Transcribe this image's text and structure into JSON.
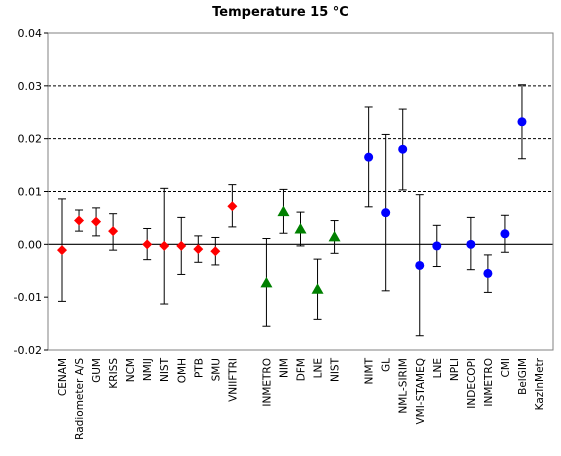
{
  "chart_data": {
    "type": "scatter",
    "title": "Temperature  15 °C",
    "xlabel": "",
    "ylabel": "",
    "ylim": [
      -0.02,
      0.04
    ],
    "y_ticks": [
      "-0.02",
      "-0.01",
      "0.00",
      "0.01",
      "0.02",
      "0.03",
      "0.04"
    ],
    "y_tick_values": [
      -0.02,
      -0.01,
      0.0,
      0.01,
      0.02,
      0.03,
      0.04
    ],
    "grid": "dashed horizontal at 0.01, 0.02, 0.03; solid line at 0.00",
    "legend": "none",
    "categories": [
      "CENAM",
      "Radiometer A/S",
      "GUM",
      "KRISS",
      "NCM",
      "NMIJ",
      "NIST",
      "OMH",
      "PTB",
      "SMU",
      "VNIIFTRI",
      "",
      "INMETRO",
      "NIM",
      "DFM",
      "LNE",
      "NIST",
      "",
      "NIMT",
      "GL",
      "NML-SIRIM",
      "VMI-STAMEQ",
      "LNE",
      "NPLI",
      "INDECOPI",
      "INMETRO",
      "CMI",
      "BelGIM",
      "KazInMetr"
    ],
    "series": [
      {
        "marker": "diamond",
        "color": "#ff0000",
        "points": [
          {
            "x": "CENAM",
            "y": -0.0011,
            "err_low": -0.0108,
            "err_high": 0.0086
          },
          {
            "x": "Radiometer A/S",
            "y": 0.0045,
            "err_low": 0.0025,
            "err_high": 0.0065
          },
          {
            "x": "GUM",
            "y": 0.0043,
            "err_low": 0.0016,
            "err_high": 0.0069
          },
          {
            "x": "KRISS",
            "y": 0.0025,
            "err_low": -0.0011,
            "err_high": 0.0058
          },
          {
            "x": "NMIJ",
            "y": 0.0,
            "err_low": -0.0029,
            "err_high": 0.003
          },
          {
            "x": "NIST",
            "y": -0.0003,
            "err_low": -0.0113,
            "err_high": 0.0106
          },
          {
            "x": "OMH",
            "y": -0.0003,
            "err_low": -0.0057,
            "err_high": 0.0051
          },
          {
            "x": "PTB",
            "y": -0.0009,
            "err_low": -0.0034,
            "err_high": 0.0016
          },
          {
            "x": "SMU",
            "y": -0.0013,
            "err_low": -0.0039,
            "err_high": 0.0013
          },
          {
            "x": "VNIIFTRI",
            "y": 0.0072,
            "err_low": 0.0033,
            "err_high": 0.0113
          }
        ]
      },
      {
        "marker": "triangle",
        "color": "#008000",
        "points": [
          {
            "x": "INMETRO",
            "y": -0.0073,
            "err_low": -0.0155,
            "err_high": 0.0011
          },
          {
            "x": "NIM",
            "y": 0.0062,
            "err_low": 0.0021,
            "err_high": 0.0104
          },
          {
            "x": "DFM",
            "y": 0.0029,
            "err_low": -0.0003,
            "err_high": 0.0061
          },
          {
            "x": "LNE",
            "y": -0.0085,
            "err_low": -0.0142,
            "err_high": -0.0028
          },
          {
            "x": "NIST",
            "y": 0.0014,
            "err_low": -0.0017,
            "err_high": 0.0045
          }
        ]
      },
      {
        "marker": "circle",
        "color": "#0000ff",
        "points": [
          {
            "x": "NIMT",
            "y": 0.0165,
            "err_low": 0.0071,
            "err_high": 0.026
          },
          {
            "x": "GL",
            "y": 0.006,
            "err_low": -0.0088,
            "err_high": 0.0208
          },
          {
            "x": "NML-SIRIM",
            "y": 0.018,
            "err_low": 0.0103,
            "err_high": 0.0256
          },
          {
            "x": "VMI-STAMEQ",
            "y": -0.004,
            "err_low": -0.0173,
            "err_high": 0.0094
          },
          {
            "x": "LNE",
            "y": -0.0003,
            "err_low": -0.0042,
            "err_high": 0.0036
          },
          {
            "x": "INDECOPI",
            "y": 0.0,
            "err_low": -0.0048,
            "err_high": 0.0051
          },
          {
            "x": "INMETRO",
            "y": -0.0055,
            "err_low": -0.0091,
            "err_high": -0.002
          },
          {
            "x": "CMI",
            "y": 0.002,
            "err_low": -0.0015,
            "err_high": 0.0055
          },
          {
            "x": "BelGIM",
            "y": 0.0232,
            "err_low": 0.0162,
            "err_high": 0.0302
          }
        ]
      }
    ]
  }
}
